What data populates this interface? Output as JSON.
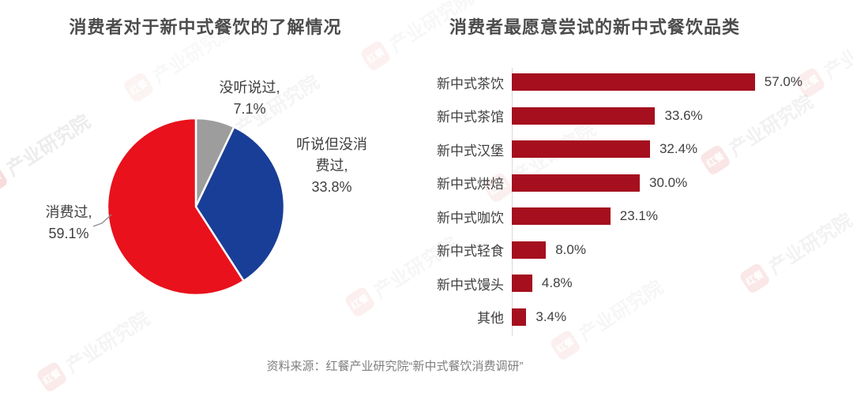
{
  "titles": {
    "pie": "消费者对于新中式餐饮的了解情况",
    "bar": "消费者最愿意尝试的新中式餐饮品类"
  },
  "source_note": "资料来源：红餐产业研究院“新中式餐饮消费调研”",
  "watermark": {
    "logo_text": "红餐",
    "org_text": "产业研究院",
    "logo_color": "#d94040",
    "text_color": "#9a9a9a"
  },
  "chart_data": [
    {
      "type": "pie",
      "title": "消费者对于新中式餐饮的了解情况",
      "labels": [
        "没听说过",
        "听说但没消费过",
        "消费过"
      ],
      "values": [
        7.1,
        33.8,
        59.1
      ],
      "colors": [
        "#9d9d9d",
        "#193e97",
        "#e8111c"
      ],
      "start_angle_deg": 0,
      "direction": "clockwise",
      "slice_border_color": "#ffffff",
      "data_labels": [
        {
          "name": "没听说过,",
          "value": "7.1%"
        },
        {
          "name": "听说但没消费过,",
          "value": "33.8%"
        },
        {
          "name": "消费过,",
          "value": "59.1%"
        }
      ]
    },
    {
      "type": "bar",
      "title": "消费者最愿意尝试的新中式餐饮品类",
      "orientation": "horizontal",
      "categories": [
        "新中式茶饮",
        "新中式茶馆",
        "新中式汉堡",
        "新中式烘焙",
        "新中式咖饮",
        "新中式轻食",
        "新中式馒头",
        "其他"
      ],
      "values": [
        57.0,
        33.6,
        32.4,
        30.0,
        23.1,
        8.0,
        4.8,
        3.4
      ],
      "value_labels": [
        "57.0%",
        "33.6%",
        "32.4%",
        "30.0%",
        "23.1%",
        "8.0%",
        "4.8%",
        "3.4%"
      ],
      "bar_color": "#a50f1e",
      "axis_color": "#d9d9d9",
      "xlim": [
        0,
        60
      ],
      "grid": false,
      "legend": false
    }
  ]
}
